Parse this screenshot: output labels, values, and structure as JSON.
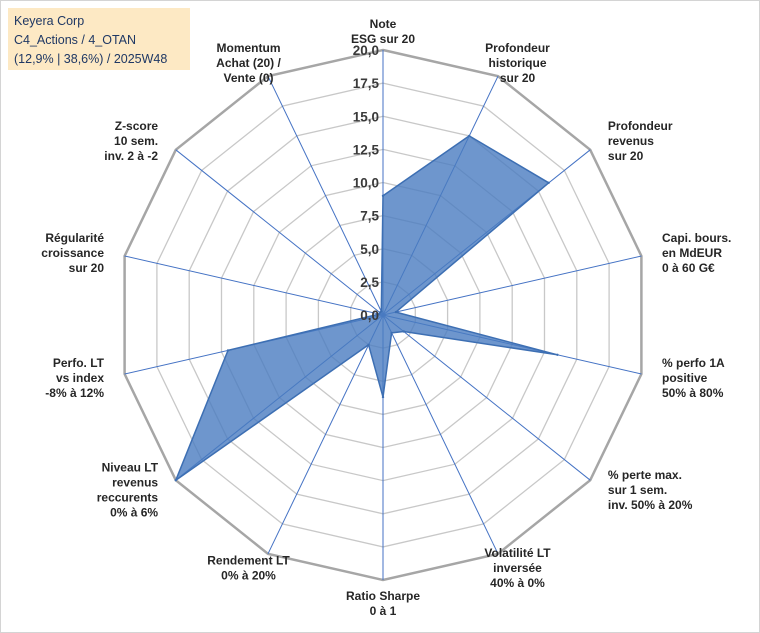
{
  "info": {
    "company": "Keyera Corp",
    "category": "C4_Actions / 4_OTAN",
    "stats": "(12,9% | 38,6%) / 2025W48"
  },
  "colors": {
    "fill": "#4a7cc0",
    "fill_opacity": 0.8,
    "stroke": "#3d6fb3",
    "grid": "#c8c8c8",
    "outer_grid": "#a6a6a6",
    "spoke": "#4472c4",
    "info_bg": "#fde9c4"
  },
  "chart_data": {
    "type": "radar",
    "title": "",
    "rmin": 0,
    "rmax": 20,
    "tick_step": 2.5,
    "tick_labels": [
      "0,0",
      "2,5",
      "5,0",
      "7,5",
      "10,0",
      "12,5",
      "15,0",
      "17,5",
      "20,0"
    ],
    "axes": [
      {
        "label": [
          "Note",
          "ESG sur 20"
        ],
        "value": 9.0
      },
      {
        "label": [
          "Profondeur",
          "historique",
          "sur 20"
        ],
        "value": 15.0
      },
      {
        "label": [
          "Profondeur",
          "revenus",
          "sur 20"
        ],
        "value": 16.0
      },
      {
        "label": [
          "Capi. bours.",
          "en MdEUR",
          "0 à 60 G€"
        ],
        "value": 1.0
      },
      {
        "label": [
          "% perfo 1A",
          "positive",
          "50% à 80%"
        ],
        "value": 13.5
      },
      {
        "label": [
          "% perte max.",
          "sur 1 sem.",
          "inv. 50% à 20%"
        ],
        "value": 2.0
      },
      {
        "label": [
          "Volatilité LT",
          "inversée",
          "40% à 0%"
        ],
        "value": 1.5
      },
      {
        "label": [
          "Ratio Sharpe",
          "0 à 1"
        ],
        "value": 6.2
      },
      {
        "label": [
          "Rendement LT",
          "0% à 20%"
        ],
        "value": 2.5
      },
      {
        "label": [
          "Niveau LT",
          "revenus",
          "reccurents",
          "0% à 6%"
        ],
        "value": 20.0
      },
      {
        "label": [
          "Perfo. LT",
          "vs index",
          "-8% à 12%"
        ],
        "value": 12.0
      },
      {
        "label": [
          "Régularité",
          "croissance",
          "sur 20"
        ],
        "value": 0.3
      },
      {
        "label": [
          "Z-score",
          "10 sem.",
          "inv. 2 à -2"
        ],
        "value": 0.3
      },
      {
        "label": [
          "Momentum",
          "Achat (20) /",
          "Vente (0)"
        ],
        "value": 0.3
      }
    ]
  }
}
